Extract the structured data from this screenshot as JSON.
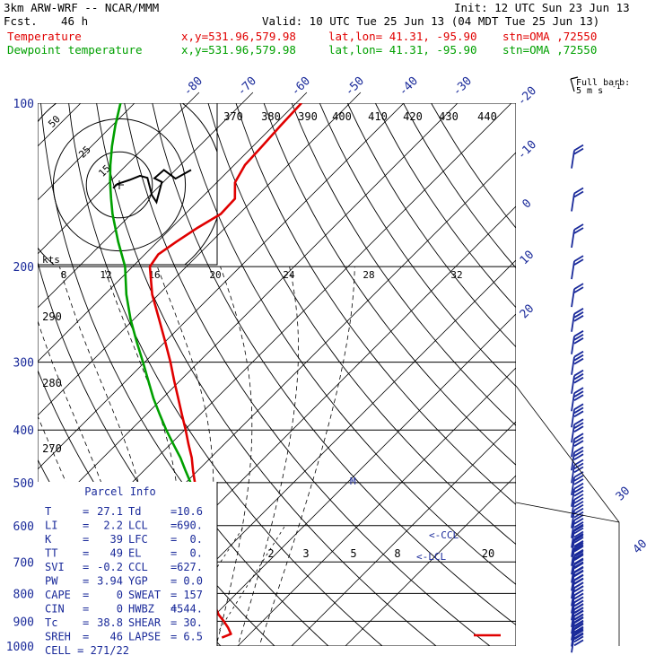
{
  "header": {
    "model": "3km ARW-WRF -- NCAR/MMM",
    "init": "Init: 12 UTC Sun 23 Jun 13",
    "fcst_label": "Fcst.",
    "fcst_value": "46 h",
    "valid": "Valid: 10 UTC Tue 25 Jun 13 (04 MDT Tue 25 Jun 13)",
    "temp_label": "Temperature",
    "dewp_label": "Dewpoint temperature",
    "xy": "x,y=531.96,579.98",
    "latlon": "lat,lon= 41.31, -95.90",
    "stn": "stn=OMA ,72550"
  },
  "colors": {
    "temperature": "#e00000",
    "dewpoint": "#00a000",
    "text": "#1a2a9a",
    "grid": "#000000"
  },
  "chart_data": {
    "type": "line",
    "subtype": "skew-t log-p sounding",
    "y_axis": {
      "label": "",
      "scale": "log",
      "ticks": [
        100,
        200,
        300,
        400,
        500,
        600,
        700,
        800,
        900,
        1000
      ],
      "range": [
        100,
        1000
      ]
    },
    "isotherm_labels": [
      -80,
      -70,
      -60,
      -50,
      -40,
      -30,
      -20,
      -10,
      0,
      10,
      20,
      30,
      40
    ],
    "theta_labels": [
      370,
      380,
      390,
      400,
      410,
      420,
      430,
      440
    ],
    "theta_left_labels": [
      290,
      280,
      270
    ],
    "mixing_ratio_labels": [
      2,
      3,
      5,
      8,
      20
    ],
    "hodograph_ring_labels": [
      50,
      25,
      15
    ],
    "kts_label": "kts",
    "kts_ticks": [
      8,
      12,
      16,
      20,
      24,
      28,
      32
    ],
    "wind_legend": {
      "title": "Full barb:",
      "value": "5 m s",
      "exp": "-1"
    },
    "ccl_label": "CCL",
    "lcl_label": "LCL",
    "series": [
      {
        "name": "Temperature",
        "p": [
          965,
          950,
          925,
          900,
          875,
          850,
          825,
          800,
          775,
          750,
          725,
          700,
          675,
          650,
          625,
          600,
          575,
          550,
          525,
          500,
          475,
          450,
          425,
          400,
          375,
          350,
          325,
          300,
          275,
          250,
          225,
          200,
          190,
          180,
          170,
          160,
          150,
          140,
          130,
          120,
          110,
          100
        ],
        "t": [
          25.5,
          26.5,
          24.8,
          22.8,
          20.6,
          18.8,
          17.2,
          15.7,
          14.0,
          12.2,
          10.4,
          8.5,
          6.8,
          4.9,
          2.9,
          0.8,
          -1.3,
          -3.6,
          -5.9,
          -8.3,
          -10.9,
          -13.5,
          -16.6,
          -19.8,
          -23.3,
          -27.0,
          -31.0,
          -35.2,
          -40.0,
          -45.3,
          -51.2,
          -56.8,
          -57.5,
          -56.5,
          -55.2,
          -53.4,
          -53.6,
          -56.6,
          -58.0,
          -58.3,
          -58.7,
          -59.0
        ]
      },
      {
        "name": "Dewpoint temperature",
        "p": [
          965,
          950,
          925,
          900,
          875,
          850,
          825,
          800,
          775,
          750,
          725,
          700,
          675,
          650,
          625,
          600,
          575,
          550,
          525,
          500,
          475,
          450,
          425,
          400,
          375,
          350,
          325,
          300,
          275,
          250,
          225,
          200,
          180,
          160,
          150,
          140,
          130,
          120,
          110,
          100
        ],
        "t": [
          9.5,
          9.0,
          9.5,
          11.0,
          10.5,
          9.5,
          9.6,
          9.4,
          9.0,
          8.8,
          8.6,
          8.4,
          6.6,
          4.6,
          2.6,
          0.4,
          -1.8,
          -4.0,
          -6.5,
          -9.1,
          -12.3,
          -15.6,
          -19.4,
          -23.4,
          -27.4,
          -31.6,
          -35.8,
          -40.3,
          -45.3,
          -50.6,
          -56.0,
          -61.4,
          -67.3,
          -73.5,
          -76.6,
          -79.8,
          -83.0,
          -86.2,
          -89.4,
          -92.6
        ]
      }
    ]
  },
  "hodograph": {
    "u": [
      -1.5,
      -0.5,
      2.5,
      5.0,
      6.8,
      7.9,
      9.0,
      10.3,
      8.5,
      10.8,
      13.6,
      17.4
    ],
    "v": [
      -0.8,
      0.2,
      1.2,
      2.2,
      1.7,
      -2.5,
      -4.2,
      0.7,
      1.6,
      3.6,
      1.5,
      3.6
    ]
  },
  "parcel_info": {
    "title": "Parcel Info",
    "rows": [
      {
        "l": "T",
        "lv": "27.1",
        "r": "Td",
        "rv": "10.6"
      },
      {
        "l": "LI",
        "lv": "2.2",
        "r": "LCL",
        "rv": "690."
      },
      {
        "l": "K",
        "lv": "39",
        "r": "LFC",
        "rv": "0."
      },
      {
        "l": "TT",
        "lv": "49",
        "r": "EL",
        "rv": "0."
      },
      {
        "l": "SVI",
        "lv": "-0.2",
        "r": "CCL",
        "rv": "627."
      },
      {
        "l": "PW",
        "lv": "3.94",
        "r": "YGP",
        "rv": "0.0"
      },
      {
        "l": "CAPE",
        "lv": "0",
        "r": "SWEAT",
        "rv": "157"
      },
      {
        "l": "CIN",
        "lv": "0",
        "r": "HWBZ",
        "rv": "4544."
      },
      {
        "l": "Tc",
        "lv": "38.8",
        "r": "SHEAR",
        "rv": "30."
      },
      {
        "l": "SREH",
        "lv": "46",
        "r": "LAPSE",
        "rv": "6.5"
      }
    ],
    "cell": "CELL = 271/22"
  }
}
